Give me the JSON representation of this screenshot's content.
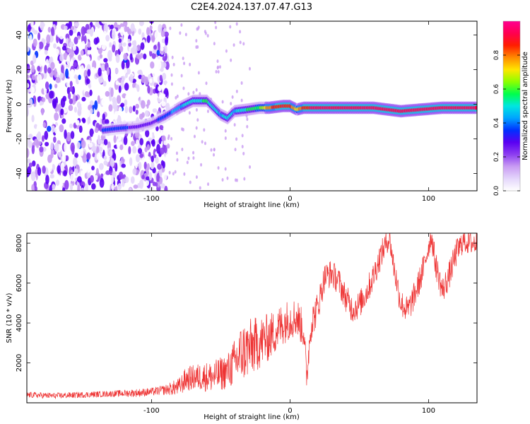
{
  "figure": {
    "title": "C2E4.2024.137.07.47.G13"
  },
  "colorbar": {
    "label": "Normalized spectral amplitude",
    "ticks": [
      "0.0",
      "0.2",
      "0.4",
      "0.6",
      "0.8"
    ],
    "tick_values": [
      0.0,
      0.2,
      0.4,
      0.6,
      0.8
    ],
    "range": [
      0.0,
      1.0
    ],
    "colors": [
      "#ffffff",
      "#e4d6fb",
      "#c99cf3",
      "#8d3ef0",
      "#5a00f2",
      "#0030ff",
      "#00a4ff",
      "#00e6e0",
      "#00ff4c",
      "#8cff00",
      "#ffe600",
      "#ff8a00",
      "#ff1e00",
      "#ff0050",
      "#ff0090"
    ]
  },
  "chart_data": [
    {
      "type": "heatmap",
      "xlabel": "Height of straight line (km)",
      "ylabel": "Frequency (Hz)",
      "xlim": [
        -190,
        135
      ],
      "ylim": [
        -50,
        48
      ],
      "xticks": [
        -100,
        0,
        100
      ],
      "xtick_labels": [
        "-100",
        "0",
        "100"
      ],
      "yticks": [
        -40,
        -20,
        0,
        20,
        40
      ],
      "ytick_labels": [
        "-40",
        "-20",
        "0",
        "20",
        "40"
      ],
      "noise_region_x": [
        -190,
        -88
      ],
      "ridge": [
        {
          "x": -135,
          "y": -15,
          "a": 0.35
        },
        {
          "x": -125,
          "y": -14,
          "a": 0.35
        },
        {
          "x": -110,
          "y": -13,
          "a": 0.3
        },
        {
          "x": -100,
          "y": -11,
          "a": 0.3
        },
        {
          "x": -90,
          "y": -7,
          "a": 0.35
        },
        {
          "x": -80,
          "y": -2,
          "a": 0.45
        },
        {
          "x": -70,
          "y": 2,
          "a": 0.5
        },
        {
          "x": -60,
          "y": 2,
          "a": 0.55
        },
        {
          "x": -50,
          "y": -6,
          "a": 0.45
        },
        {
          "x": -45,
          "y": -8,
          "a": 0.5
        },
        {
          "x": -40,
          "y": -4,
          "a": 0.45
        },
        {
          "x": -30,
          "y": -3,
          "a": 0.55
        },
        {
          "x": -22,
          "y": -2,
          "a": 0.6
        },
        {
          "x": -15,
          "y": -2,
          "a": 0.8
        },
        {
          "x": -5,
          "y": -1,
          "a": 0.9
        },
        {
          "x": 0,
          "y": -1,
          "a": 0.85
        },
        {
          "x": 5,
          "y": -3,
          "a": 0.7
        },
        {
          "x": 10,
          "y": -2,
          "a": 0.85
        },
        {
          "x": 20,
          "y": -2,
          "a": 0.95
        },
        {
          "x": 40,
          "y": -2,
          "a": 0.95
        },
        {
          "x": 60,
          "y": -2,
          "a": 0.95
        },
        {
          "x": 80,
          "y": -4,
          "a": 0.95
        },
        {
          "x": 95,
          "y": -3,
          "a": 0.9
        },
        {
          "x": 110,
          "y": -2,
          "a": 0.9
        },
        {
          "x": 135,
          "y": -2,
          "a": 0.9
        }
      ]
    },
    {
      "type": "line",
      "xlabel": "Height of straight line (km)",
      "ylabel": "SNR (10 * v/v)",
      "xlim": [
        -190,
        135
      ],
      "ylim": [
        0,
        8500
      ],
      "xticks": [
        -100,
        0,
        100
      ],
      "xtick_labels": [
        "-100",
        "0",
        "100"
      ],
      "yticks": [
        2000,
        4000,
        6000,
        8000
      ],
      "ytick_labels": [
        "2000",
        "4000",
        "6000",
        "8000"
      ],
      "series": [
        {
          "color": "#ee3333",
          "x": [
            -190,
            -170,
            -150,
            -130,
            -110,
            -100,
            -90,
            -80,
            -75,
            -65,
            -55,
            -45,
            -40,
            -35,
            -30,
            -25,
            -20,
            -15,
            -10,
            -5,
            0,
            5,
            10,
            12,
            15,
            20,
            25,
            30,
            35,
            40,
            45,
            50,
            55,
            60,
            65,
            70,
            72,
            75,
            80,
            85,
            90,
            95,
            100,
            102,
            105,
            110,
            115,
            120,
            125,
            130,
            135
          ],
          "y": [
            400,
            350,
            400,
            450,
            500,
            550,
            650,
            800,
            1200,
            1300,
            1300,
            1600,
            2000,
            2500,
            2700,
            2900,
            3100,
            3300,
            3600,
            4000,
            4200,
            4300,
            3600,
            1200,
            3900,
            4800,
            6300,
            6500,
            6100,
            5300,
            4700,
            4900,
            5500,
            6300,
            7300,
            8100,
            8200,
            6800,
            5000,
            4600,
            5400,
            6400,
            7800,
            8400,
            7000,
            5600,
            6400,
            7500,
            8100,
            8000,
            8000
          ],
          "noise": [
            150,
            150,
            150,
            150,
            200,
            200,
            250,
            450,
            600,
            700,
            800,
            900,
            1200,
            1500,
            1500,
            1400,
            1300,
            1200,
            1100,
            1100,
            1000,
            1000,
            900,
            700,
            900,
            800,
            700,
            700,
            700,
            700,
            700,
            700,
            700,
            700,
            700,
            600,
            600,
            700,
            700,
            700,
            700,
            700,
            600,
            600,
            700,
            700,
            700,
            700,
            600,
            600,
            600
          ]
        }
      ]
    }
  ]
}
